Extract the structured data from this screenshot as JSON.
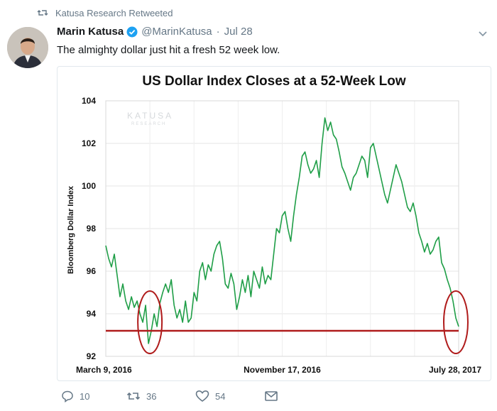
{
  "retweet": {
    "label": "Katusa Research Retweeted",
    "icon": "retweet-icon"
  },
  "tweet": {
    "author_name": "Marin Katusa",
    "handle": "@MarinKatusa",
    "separator": "·",
    "date": "Jul 28",
    "verified": true,
    "text": "The almighty dollar just hit a fresh 52 week low."
  },
  "chart_data": {
    "type": "line",
    "title": "US Dollar Index Closes at a 52-Week Low",
    "ylabel": "Bloomberg Dollar Index",
    "xlabel": "",
    "watermark": {
      "brand": "KATUSA",
      "sub": "RESEARCH"
    },
    "ylim": [
      92,
      104
    ],
    "yticks": [
      92,
      94,
      96,
      98,
      100,
      102,
      104
    ],
    "x_tick_labels": [
      "March 9, 2016",
      "November 17, 2016",
      "July 28, 2017"
    ],
    "grid": true,
    "series": [
      {
        "color": "#1f9e47",
        "x": [
          0,
          1,
          2,
          3,
          4,
          5,
          6,
          7,
          8,
          9,
          10,
          11,
          12,
          13,
          14,
          15,
          16,
          17,
          18,
          19,
          20,
          21,
          22,
          23,
          24,
          25,
          26,
          27,
          28,
          29,
          30,
          31,
          32,
          33,
          34,
          35,
          36,
          37,
          38,
          39,
          40,
          41,
          42,
          43,
          44,
          45,
          46,
          47,
          48,
          49,
          50,
          51,
          52,
          53,
          54,
          55,
          56,
          57,
          58,
          59,
          60,
          61,
          62,
          63,
          64,
          65,
          66,
          67,
          68,
          69,
          70,
          71,
          72,
          73,
          74,
          75,
          76,
          77,
          78,
          79,
          80,
          81,
          82,
          83,
          84,
          85,
          86,
          87,
          88,
          89,
          90,
          91,
          92,
          93,
          94,
          95,
          96,
          97,
          98,
          99,
          100,
          101,
          102,
          103,
          104,
          105,
          106,
          107,
          108,
          109,
          110,
          111,
          112,
          113,
          114,
          115,
          116,
          117,
          118,
          119,
          120,
          121,
          122,
          123,
          124
        ],
        "values": [
          97.2,
          96.6,
          96.2,
          96.8,
          95.8,
          94.8,
          95.4,
          94.6,
          94.2,
          94.8,
          94.3,
          94.6,
          94.0,
          93.6,
          94.4,
          92.6,
          93.2,
          94.0,
          93.4,
          94.5,
          95.0,
          95.4,
          95.0,
          95.6,
          94.4,
          93.8,
          94.2,
          93.6,
          94.6,
          93.6,
          93.8,
          95.0,
          94.6,
          96.0,
          96.4,
          95.6,
          96.3,
          96.0,
          96.8,
          97.2,
          97.4,
          96.6,
          95.4,
          95.2,
          95.9,
          95.4,
          94.2,
          94.8,
          95.6,
          95.0,
          95.8,
          94.8,
          96.0,
          95.6,
          95.2,
          96.2,
          95.4,
          95.8,
          95.6,
          96.8,
          98.0,
          97.8,
          98.6,
          98.8,
          98.0,
          97.4,
          98.6,
          99.6,
          100.4,
          101.4,
          101.6,
          101.0,
          100.6,
          100.8,
          101.2,
          100.4,
          102.0,
          103.2,
          102.6,
          103.0,
          102.4,
          102.2,
          101.6,
          100.9,
          100.6,
          100.2,
          99.8,
          100.4,
          100.6,
          101.0,
          101.4,
          101.2,
          100.4,
          101.8,
          102.0,
          101.4,
          100.8,
          100.2,
          99.6,
          99.2,
          99.8,
          100.4,
          101.0,
          100.6,
          100.2,
          99.6,
          99.0,
          98.8,
          99.2,
          98.6,
          97.8,
          97.4,
          96.9,
          97.3,
          96.8,
          97.0,
          97.4,
          97.6,
          96.4,
          96.1,
          95.6,
          95.2,
          94.6,
          93.8,
          93.4
        ]
      }
    ],
    "reference_line": {
      "y": 93.2,
      "color": "#b01c1c"
    },
    "annotations": [
      {
        "type": "ellipse",
        "cx": 15.5,
        "cy": 93.6,
        "color": "#b01c1c"
      },
      {
        "type": "ellipse",
        "cx": 123,
        "cy": 93.6,
        "color": "#b01c1c"
      }
    ]
  },
  "actions": {
    "reply": {
      "icon": "reply-icon",
      "count": "10"
    },
    "retweet": {
      "icon": "retweet-icon",
      "count": "36"
    },
    "like": {
      "icon": "heart-icon",
      "count": "54"
    },
    "message": {
      "icon": "envelope-icon"
    }
  },
  "colors": {
    "muted": "#657786",
    "verified": "#1da1f2",
    "line": "#1f9e47",
    "annotation": "#b01c1c"
  }
}
